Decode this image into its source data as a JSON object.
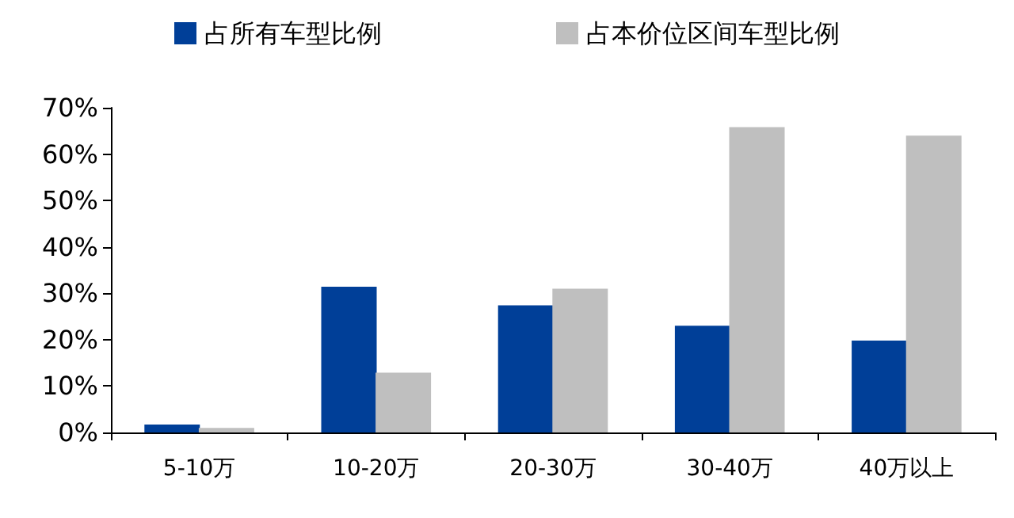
{
  "chart_data": {
    "type": "bar",
    "categories": [
      "5-10万",
      "10-20万",
      "20-30万",
      "30-40万",
      "40万以上"
    ],
    "series": [
      {
        "name": "占所有车型比例",
        "color": "#003f98",
        "values": [
          1.7,
          31.4,
          27.4,
          23.0,
          19.8
        ]
      },
      {
        "name": "占本价位区间车型比例",
        "color": "#bfbfbf",
        "values": [
          1.0,
          12.9,
          31.0,
          65.8,
          64.0
        ]
      }
    ],
    "ylim": [
      0,
      70
    ],
    "yticks": [
      {
        "value": 0,
        "label": "0%"
      },
      {
        "value": 10,
        "label": "10%"
      },
      {
        "value": 20,
        "label": "20%"
      },
      {
        "value": 30,
        "label": "30%"
      },
      {
        "value": 40,
        "label": "40%"
      },
      {
        "value": 50,
        "label": "50%"
      },
      {
        "value": 60,
        "label": "60%"
      },
      {
        "value": 70,
        "label": "70%"
      }
    ],
    "grid": false,
    "legend": "top"
  }
}
